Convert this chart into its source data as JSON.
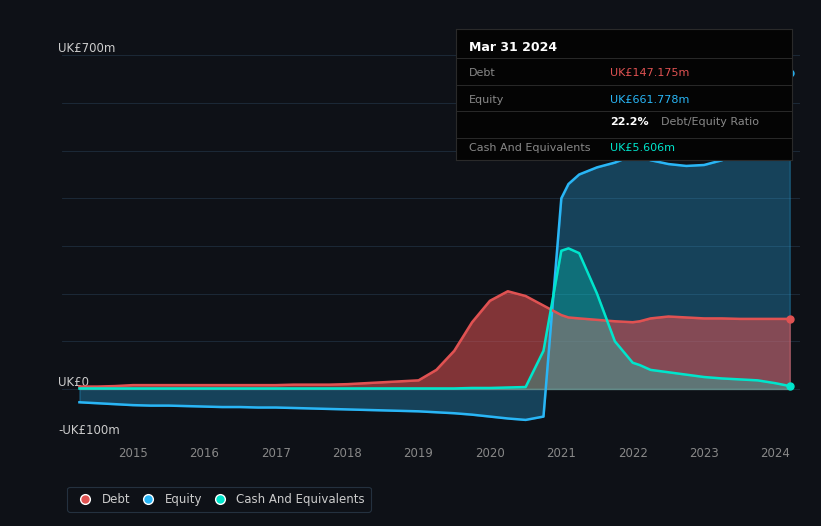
{
  "background_color": "#0e1117",
  "plot_bg_color": "#0e1117",
  "grid_color": "#1e2d3d",
  "title_box": {
    "date": "Mar 31 2024",
    "debt_label": "Debt",
    "debt_value": "UK£147.175m",
    "equity_label": "Equity",
    "equity_value": "UK£661.778m",
    "ratio_value": "22.2%",
    "ratio_label": "Debt/Equity Ratio",
    "cash_label": "Cash And Equivalents",
    "cash_value": "UK£5.606m"
  },
  "ylabel_top": "UK£700m",
  "ylabel_zero": "UK£0",
  "ylabel_neg": "-UK£100m",
  "ylim": [
    -100,
    750
  ],
  "debt_color": "#e05252",
  "equity_color": "#29b6f6",
  "cash_color": "#00e5cc",
  "x_years": [
    2014.25,
    2014.5,
    2014.75,
    2015.0,
    2015.25,
    2015.5,
    2015.75,
    2016.0,
    2016.25,
    2016.5,
    2016.75,
    2017.0,
    2017.25,
    2017.5,
    2017.75,
    2018.0,
    2018.25,
    2018.5,
    2018.75,
    2019.0,
    2019.25,
    2019.5,
    2019.75,
    2020.0,
    2020.25,
    2020.5,
    2020.75,
    2021.0,
    2021.1,
    2021.25,
    2021.5,
    2021.75,
    2022.0,
    2022.1,
    2022.25,
    2022.5,
    2022.75,
    2023.0,
    2023.25,
    2023.5,
    2023.75,
    2024.0,
    2024.2
  ],
  "debt": [
    5,
    5,
    6,
    8,
    8,
    8,
    8,
    8,
    8,
    8,
    8,
    8,
    9,
    9,
    9,
    10,
    12,
    14,
    16,
    18,
    40,
    80,
    140,
    185,
    205,
    195,
    175,
    155,
    150,
    148,
    145,
    142,
    140,
    142,
    148,
    152,
    150,
    148,
    148,
    147,
    147,
    147,
    147
  ],
  "equity": [
    -28,
    -30,
    -32,
    -34,
    -35,
    -35,
    -36,
    -37,
    -38,
    -38,
    -39,
    -39,
    -40,
    -41,
    -42,
    -43,
    -44,
    -45,
    -46,
    -47,
    -49,
    -51,
    -54,
    -58,
    -62,
    -65,
    -58,
    400,
    430,
    450,
    465,
    475,
    490,
    488,
    480,
    472,
    468,
    470,
    480,
    500,
    530,
    620,
    662
  ],
  "cash": [
    1,
    1,
    1,
    1,
    1,
    1,
    1,
    1,
    1,
    1,
    1,
    1,
    1,
    1,
    1,
    1,
    1,
    1,
    1,
    1,
    1,
    1,
    2,
    2,
    3,
    4,
    80,
    290,
    295,
    285,
    200,
    100,
    55,
    50,
    40,
    35,
    30,
    25,
    22,
    20,
    18,
    12,
    6
  ]
}
